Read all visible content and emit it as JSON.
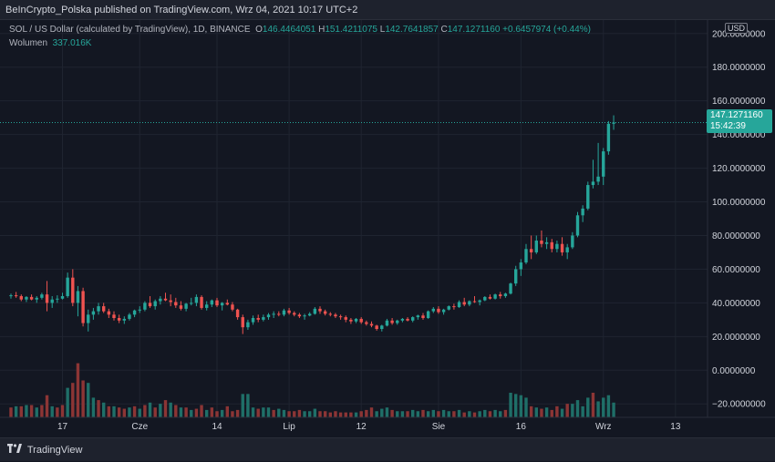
{
  "header": {
    "published": "BeInCrypto_Polska published on TradingView.com, Wrz 04, 2021 10:17 UTC+2"
  },
  "legend": {
    "symbol": "SOL / US Dollar (calculated by TradingView), 1D, BINANCE",
    "o_label": "O",
    "o_value": "146.4464051",
    "h_label": "H",
    "h_value": "151.4211075",
    "l_label": "L",
    "l_value": "142.7641857",
    "c_label": "C",
    "c_value": "147.1271160",
    "change": "+0.6457974 (+0.44%)",
    "volume_label": "Wolumen",
    "volume_value": "337.016K"
  },
  "currency": "USD",
  "price_tag": {
    "price": "147.1271160",
    "countdown": "15:42:39"
  },
  "footer": {
    "brand": "TradingView"
  },
  "colors": {
    "up": "#26a69a",
    "down": "#ef5350",
    "up_volume": "#1f6f68",
    "down_volume": "#8c3535",
    "background": "#131722",
    "grid": "#1f2430"
  },
  "chart_data": {
    "type": "candlestick",
    "title": "SOL / US Dollar (calculated by TradingView), 1D, BINANCE",
    "y_axis": {
      "ticks": [
        200,
        180,
        160,
        140,
        120,
        100,
        80,
        60,
        40,
        20,
        0,
        -20
      ],
      "tick_labels": [
        "200.0000000",
        "180.0000000",
        "160.0000000",
        "140.0000000",
        "120.0000000",
        "100.0000000",
        "80.0000000",
        "60.0000000",
        "40.0000000",
        "20.0000000",
        "0.0000000",
        "−20.0000000"
      ],
      "ylim": [
        -28,
        208
      ]
    },
    "x_axis": {
      "tick_labels": [
        "17",
        "Cze",
        "14",
        "Lip",
        "12",
        "Sie",
        "16",
        "Wrz",
        "13"
      ],
      "tick_index": [
        10,
        25,
        40,
        54,
        68,
        83,
        99,
        115,
        129
      ]
    },
    "last_price": 147.127116,
    "grid": true,
    "candles": [
      [
        44.0,
        45.5,
        42.5,
        44.5
      ],
      [
        44.5,
        46.5,
        43.0,
        44.0
      ],
      [
        44.0,
        45.0,
        41.0,
        42.0
      ],
      [
        42.0,
        44.0,
        40.5,
        43.5
      ],
      [
        43.5,
        45.0,
        41.5,
        42.0
      ],
      [
        42.0,
        44.0,
        40.0,
        43.0
      ],
      [
        43.0,
        46.0,
        42.0,
        45.0
      ],
      [
        45.0,
        53.0,
        35.0,
        40.0
      ],
      [
        40.0,
        44.0,
        37.0,
        42.0
      ],
      [
        42.0,
        44.5,
        40.0,
        42.5
      ],
      [
        42.5,
        46.0,
        42.0,
        44.0
      ],
      [
        44.0,
        58.0,
        43.0,
        55.0
      ],
      [
        55.0,
        60.0,
        38.0,
        40.0
      ],
      [
        40.0,
        50.0,
        32.0,
        47.0
      ],
      [
        47.0,
        49.0,
        26.0,
        28.0
      ],
      [
        28.0,
        36.0,
        23.0,
        33.0
      ],
      [
        33.0,
        37.0,
        30.0,
        35.0
      ],
      [
        35.0,
        40.0,
        33.0,
        38.0
      ],
      [
        38.0,
        40.0,
        34.0,
        35.0
      ],
      [
        35.0,
        36.5,
        31.0,
        33.0
      ],
      [
        33.0,
        35.0,
        29.5,
        31.0
      ],
      [
        31.0,
        33.0,
        28.0,
        29.5
      ],
      [
        29.5,
        32.0,
        27.5,
        30.5
      ],
      [
        30.5,
        34.0,
        29.5,
        33.0
      ],
      [
        33.0,
        36.0,
        31.5,
        35.5
      ],
      [
        35.5,
        38.0,
        34.0,
        36.0
      ],
      [
        36.0,
        41.0,
        35.0,
        40.0
      ],
      [
        40.0,
        44.0,
        37.0,
        38.0
      ],
      [
        38.0,
        42.0,
        36.0,
        41.0
      ],
      [
        41.0,
        44.0,
        39.0,
        42.5
      ],
      [
        42.5,
        46.0,
        41.0,
        41.5
      ],
      [
        41.5,
        45.0,
        38.0,
        40.5
      ],
      [
        40.5,
        43.0,
        37.0,
        38.5
      ],
      [
        38.5,
        41.0,
        35.5,
        36.5
      ],
      [
        36.5,
        40.0,
        35.0,
        39.5
      ],
      [
        39.5,
        43.0,
        38.5,
        40.0
      ],
      [
        40.0,
        45.0,
        38.0,
        43.5
      ],
      [
        43.5,
        44.5,
        36.0,
        37.0
      ],
      [
        37.0,
        41.0,
        35.5,
        39.0
      ],
      [
        39.0,
        42.0,
        37.5,
        41.5
      ],
      [
        41.5,
        43.0,
        37.5,
        38.5
      ],
      [
        38.5,
        40.5,
        35.5,
        40.0
      ],
      [
        40.0,
        42.0,
        38.5,
        39.0
      ],
      [
        39.0,
        40.5,
        35.0,
        36.0
      ],
      [
        36.0,
        36.5,
        30.0,
        31.5
      ],
      [
        31.5,
        33.0,
        21.5,
        25.5
      ],
      [
        25.5,
        30.0,
        24.0,
        28.5
      ],
      [
        28.5,
        32.5,
        27.0,
        31.0
      ],
      [
        31.0,
        33.0,
        28.5,
        30.0
      ],
      [
        30.0,
        33.0,
        29.0,
        31.5
      ],
      [
        31.5,
        34.0,
        30.0,
        33.0
      ],
      [
        33.0,
        35.0,
        31.0,
        33.5
      ],
      [
        33.5,
        35.0,
        32.0,
        33.0
      ],
      [
        33.0,
        36.5,
        32.0,
        35.5
      ],
      [
        35.5,
        37.0,
        33.0,
        34.0
      ],
      [
        34.0,
        35.0,
        32.0,
        33.0
      ],
      [
        33.0,
        34.0,
        31.0,
        32.0
      ],
      [
        32.0,
        33.5,
        30.0,
        32.5
      ],
      [
        32.5,
        34.5,
        32.0,
        33.5
      ],
      [
        33.5,
        37.5,
        33.0,
        36.5
      ],
      [
        36.5,
        38.0,
        33.5,
        35.0
      ],
      [
        35.0,
        36.0,
        32.5,
        33.5
      ],
      [
        33.5,
        34.5,
        32.0,
        33.0
      ],
      [
        33.0,
        34.0,
        31.0,
        32.0
      ],
      [
        32.0,
        33.0,
        30.0,
        31.5
      ],
      [
        31.5,
        32.5,
        28.5,
        30.0
      ],
      [
        30.0,
        31.0,
        27.5,
        29.0
      ],
      [
        29.0,
        31.0,
        28.0,
        30.5
      ],
      [
        30.5,
        31.5,
        27.5,
        28.5
      ],
      [
        28.5,
        29.5,
        26.5,
        27.5
      ],
      [
        27.5,
        29.0,
        25.5,
        26.5
      ],
      [
        26.5,
        27.0,
        23.5,
        24.5
      ],
      [
        24.5,
        27.0,
        23.0,
        26.5
      ],
      [
        26.5,
        30.5,
        26.0,
        29.5
      ],
      [
        29.5,
        31.0,
        27.0,
        28.0
      ],
      [
        28.0,
        30.0,
        27.0,
        29.5
      ],
      [
        29.5,
        31.0,
        28.5,
        30.5
      ],
      [
        30.5,
        31.5,
        29.0,
        29.5
      ],
      [
        29.5,
        32.0,
        28.5,
        31.5
      ],
      [
        31.5,
        33.0,
        30.0,
        32.5
      ],
      [
        32.5,
        34.0,
        30.0,
        31.0
      ],
      [
        31.0,
        35.5,
        30.5,
        35.0
      ],
      [
        35.0,
        37.5,
        34.0,
        36.5
      ],
      [
        36.5,
        38.0,
        33.5,
        34.5
      ],
      [
        34.5,
        36.5,
        33.0,
        36.0
      ],
      [
        36.0,
        38.5,
        35.5,
        38.0
      ],
      [
        38.0,
        39.5,
        36.0,
        37.5
      ],
      [
        37.5,
        41.5,
        37.0,
        40.5
      ],
      [
        40.5,
        43.0,
        38.0,
        39.0
      ],
      [
        39.0,
        41.5,
        38.0,
        41.0
      ],
      [
        41.0,
        44.0,
        40.0,
        40.5
      ],
      [
        40.5,
        42.0,
        38.5,
        41.5
      ],
      [
        41.5,
        44.0,
        41.0,
        43.5
      ],
      [
        43.5,
        45.0,
        42.0,
        42.5
      ],
      [
        42.5,
        45.5,
        42.0,
        45.0
      ],
      [
        45.0,
        46.5,
        42.5,
        44.0
      ],
      [
        44.0,
        46.0,
        43.0,
        45.5
      ],
      [
        45.5,
        52.0,
        45.0,
        51.5
      ],
      [
        51.5,
        62.0,
        50.0,
        60.0
      ],
      [
        60.0,
        66.0,
        56.0,
        64.0
      ],
      [
        64.0,
        75.0,
        63.0,
        72.0
      ],
      [
        72.0,
        80.0,
        66.0,
        70.0
      ],
      [
        70.0,
        80.0,
        69.0,
        77.0
      ],
      [
        77.0,
        83.0,
        73.0,
        75.0
      ],
      [
        75.0,
        79.0,
        72.0,
        76.0
      ],
      [
        76.0,
        78.0,
        70.0,
        72.0
      ],
      [
        72.0,
        77.0,
        70.0,
        75.0
      ],
      [
        75.0,
        79.0,
        68.0,
        70.0
      ],
      [
        70.0,
        75.0,
        66.0,
        73.0
      ],
      [
        73.0,
        82.0,
        72.0,
        80.0
      ],
      [
        80.0,
        94.0,
        79.0,
        92.0
      ],
      [
        92.0,
        98.0,
        88.0,
        96.0
      ],
      [
        96.0,
        112.0,
        95.0,
        110.0
      ],
      [
        110.0,
        125.0,
        108.0,
        112.0
      ],
      [
        112.0,
        135.0,
        110.0,
        115.0
      ],
      [
        115.0,
        132.0,
        110.0,
        130.0
      ],
      [
        130.0,
        148.0,
        128.0,
        146.4
      ],
      [
        146.4,
        151.4,
        142.8,
        147.1
      ]
    ],
    "volume": [
      [
        8,
        0
      ],
      [
        9,
        1
      ],
      [
        9,
        0
      ],
      [
        10,
        1
      ],
      [
        10,
        0
      ],
      [
        8,
        1
      ],
      [
        10,
        0
      ],
      [
        18,
        0
      ],
      [
        9,
        1
      ],
      [
        8,
        0
      ],
      [
        10,
        0
      ],
      [
        24,
        1
      ],
      [
        28,
        0
      ],
      [
        44,
        0
      ],
      [
        30,
        0
      ],
      [
        28,
        1
      ],
      [
        16,
        1
      ],
      [
        14,
        0
      ],
      [
        12,
        1
      ],
      [
        9,
        0
      ],
      [
        9,
        1
      ],
      [
        8,
        0
      ],
      [
        7,
        0
      ],
      [
        8,
        1
      ],
      [
        9,
        0
      ],
      [
        7,
        1
      ],
      [
        10,
        0
      ],
      [
        12,
        1
      ],
      [
        8,
        0
      ],
      [
        11,
        1
      ],
      [
        14,
        0
      ],
      [
        12,
        1
      ],
      [
        10,
        0
      ],
      [
        8,
        1
      ],
      [
        8,
        0
      ],
      [
        6,
        1
      ],
      [
        7,
        0
      ],
      [
        10,
        0
      ],
      [
        6,
        1
      ],
      [
        8,
        0
      ],
      [
        5,
        0
      ],
      [
        6,
        1
      ],
      [
        9,
        0
      ],
      [
        5,
        0
      ],
      [
        6,
        0
      ],
      [
        19,
        1
      ],
      [
        19,
        1
      ],
      [
        8,
        1
      ],
      [
        7,
        0
      ],
      [
        8,
        1
      ],
      [
        8,
        1
      ],
      [
        6,
        0
      ],
      [
        7,
        1
      ],
      [
        6,
        1
      ],
      [
        5,
        0
      ],
      [
        5,
        0
      ],
      [
        6,
        0
      ],
      [
        5,
        1
      ],
      [
        5,
        1
      ],
      [
        7,
        1
      ],
      [
        5,
        0
      ],
      [
        5,
        0
      ],
      [
        4,
        0
      ],
      [
        5,
        0
      ],
      [
        4,
        0
      ],
      [
        4,
        0
      ],
      [
        4,
        0
      ],
      [
        4,
        1
      ],
      [
        5,
        0
      ],
      [
        6,
        0
      ],
      [
        8,
        0
      ],
      [
        5,
        1
      ],
      [
        7,
        1
      ],
      [
        8,
        1
      ],
      [
        6,
        0
      ],
      [
        5,
        1
      ],
      [
        5,
        1
      ],
      [
        5,
        0
      ],
      [
        6,
        1
      ],
      [
        5,
        1
      ],
      [
        6,
        0
      ],
      [
        5,
        1
      ],
      [
        6,
        1
      ],
      [
        5,
        0
      ],
      [
        6,
        1
      ],
      [
        5,
        1
      ],
      [
        5,
        0
      ],
      [
        6,
        1
      ],
      [
        4,
        0
      ],
      [
        5,
        1
      ],
      [
        4,
        0
      ],
      [
        5,
        1
      ],
      [
        6,
        1
      ],
      [
        5,
        0
      ],
      [
        6,
        1
      ],
      [
        5,
        1
      ],
      [
        6,
        0
      ],
      [
        20,
        1
      ],
      [
        19,
        1
      ],
      [
        18,
        1
      ],
      [
        16,
        1
      ],
      [
        9,
        0
      ],
      [
        8,
        1
      ],
      [
        7,
        0
      ],
      [
        8,
        1
      ],
      [
        6,
        0
      ],
      [
        9,
        0
      ],
      [
        7,
        1
      ],
      [
        11,
        0
      ],
      [
        11,
        1
      ],
      [
        14,
        1
      ],
      [
        9,
        1
      ],
      [
        16,
        1
      ],
      [
        20,
        0
      ],
      [
        13,
        1
      ],
      [
        16,
        1
      ],
      [
        18,
        1
      ],
      [
        12,
        1
      ]
    ]
  }
}
